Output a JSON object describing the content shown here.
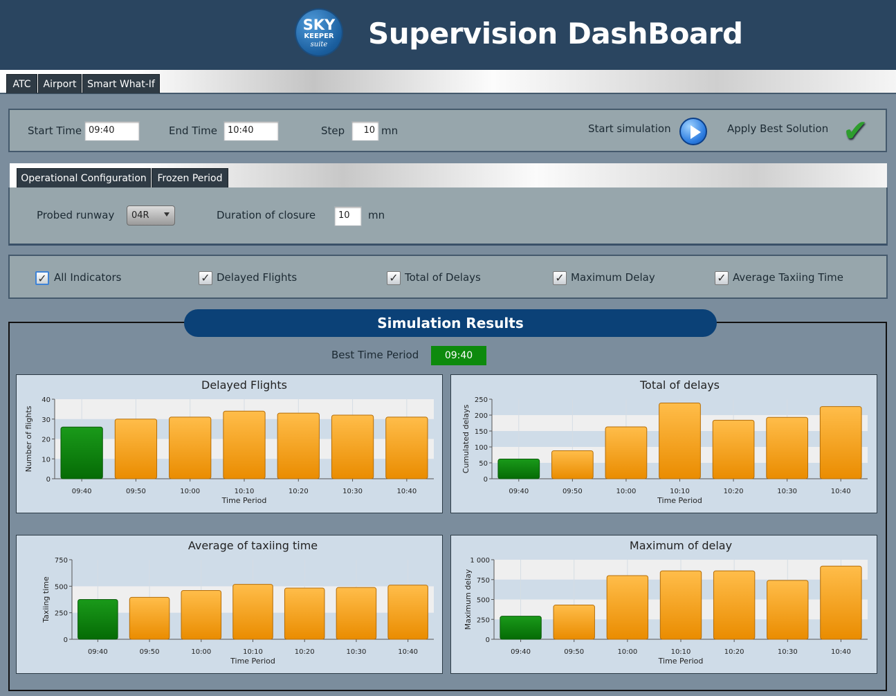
{
  "header": {
    "logo": {
      "line1": "SKY",
      "line2": "KEEPER",
      "line3": "suite"
    },
    "title": "Supervision DashBoard"
  },
  "tabs": [
    {
      "label": "ATC"
    },
    {
      "label": "Airport"
    },
    {
      "label": "Smart What-If"
    }
  ],
  "simulation": {
    "start_time_label": "Start Time",
    "start_time_value": "09:40",
    "end_time_label": "End Time",
    "end_time_value": "10:40",
    "step_label": "Step",
    "step_value": "10",
    "step_unit": "mn",
    "start_label": "Start simulation",
    "apply_label": "Apply Best Solution"
  },
  "config_tabs": [
    {
      "label": "Operational Configuration"
    },
    {
      "label": "Frozen Period"
    }
  ],
  "config": {
    "runway_label": "Probed runway",
    "runway_value": "04R",
    "closure_label": "Duration of closure",
    "closure_value": "10",
    "closure_unit": "mn"
  },
  "indicators": [
    {
      "label": "All Indicators",
      "checked": true
    },
    {
      "label": "Delayed Flights",
      "checked": true
    },
    {
      "label": "Total of Delays",
      "checked": true
    },
    {
      "label": "Maximum Delay",
      "checked": true
    },
    {
      "label": "Average Taxiing Time",
      "checked": true
    }
  ],
  "results": {
    "title": "Simulation Results",
    "best_label": "Best Time Period",
    "best_value": "09:40"
  },
  "colors": {
    "best_bar": "#118a11",
    "bar": "#f5a623",
    "banner": "#0b4177"
  },
  "chart_data": [
    {
      "type": "bar",
      "title": "Delayed Flights",
      "xlabel": "Time Period",
      "ylabel": "Number of flights",
      "categories": [
        "09:40",
        "09:50",
        "10:00",
        "10:10",
        "10:20",
        "10:30",
        "10:40"
      ],
      "values": [
        26,
        30,
        31,
        34,
        33,
        32,
        31
      ],
      "ylim": [
        0,
        40
      ],
      "yticks": [
        0,
        10,
        20,
        30,
        40
      ],
      "ytick_labels": [
        "0",
        "10",
        "20",
        "30",
        "40"
      ],
      "highlight_index": 0
    },
    {
      "type": "bar",
      "title": "Total of delays",
      "xlabel": "Time Period",
      "ylabel": "Cumulated delays",
      "categories": [
        "09:40",
        "09:50",
        "10:00",
        "10:10",
        "10:20",
        "10:30",
        "10:40"
      ],
      "values": [
        62,
        88,
        163,
        238,
        184,
        193,
        227
      ],
      "ylim": [
        0,
        250
      ],
      "yticks": [
        0,
        50,
        100,
        150,
        200,
        250
      ],
      "ytick_labels": [
        "0",
        "50",
        "100",
        "150",
        "200",
        "250"
      ],
      "highlight_index": 0
    },
    {
      "type": "bar",
      "title": "Average of taxiing time",
      "xlabel": "Time Period",
      "ylabel": "Taxiing time",
      "categories": [
        "09:40",
        "09:50",
        "10:00",
        "10:10",
        "10:20",
        "10:30",
        "10:40"
      ],
      "values": [
        375,
        395,
        460,
        518,
        483,
        488,
        510
      ],
      "ylim": [
        0,
        750
      ],
      "yticks": [
        0,
        250,
        500,
        750
      ],
      "ytick_labels": [
        "0",
        "250",
        "500",
        "750"
      ],
      "highlight_index": 0
    },
    {
      "type": "bar",
      "title": "Maximum of delay",
      "xlabel": "Time Period",
      "ylabel": "Maximum delay",
      "categories": [
        "09:40",
        "09:50",
        "10:00",
        "10:10",
        "10:20",
        "10:30",
        "10:40"
      ],
      "values": [
        290,
        430,
        800,
        860,
        860,
        740,
        920
      ],
      "ylim": [
        0,
        1000
      ],
      "yticks": [
        0,
        250,
        500,
        750,
        1000
      ],
      "ytick_labels": [
        "0",
        "250",
        "500",
        "750",
        "1 000"
      ],
      "highlight_index": 0
    }
  ]
}
